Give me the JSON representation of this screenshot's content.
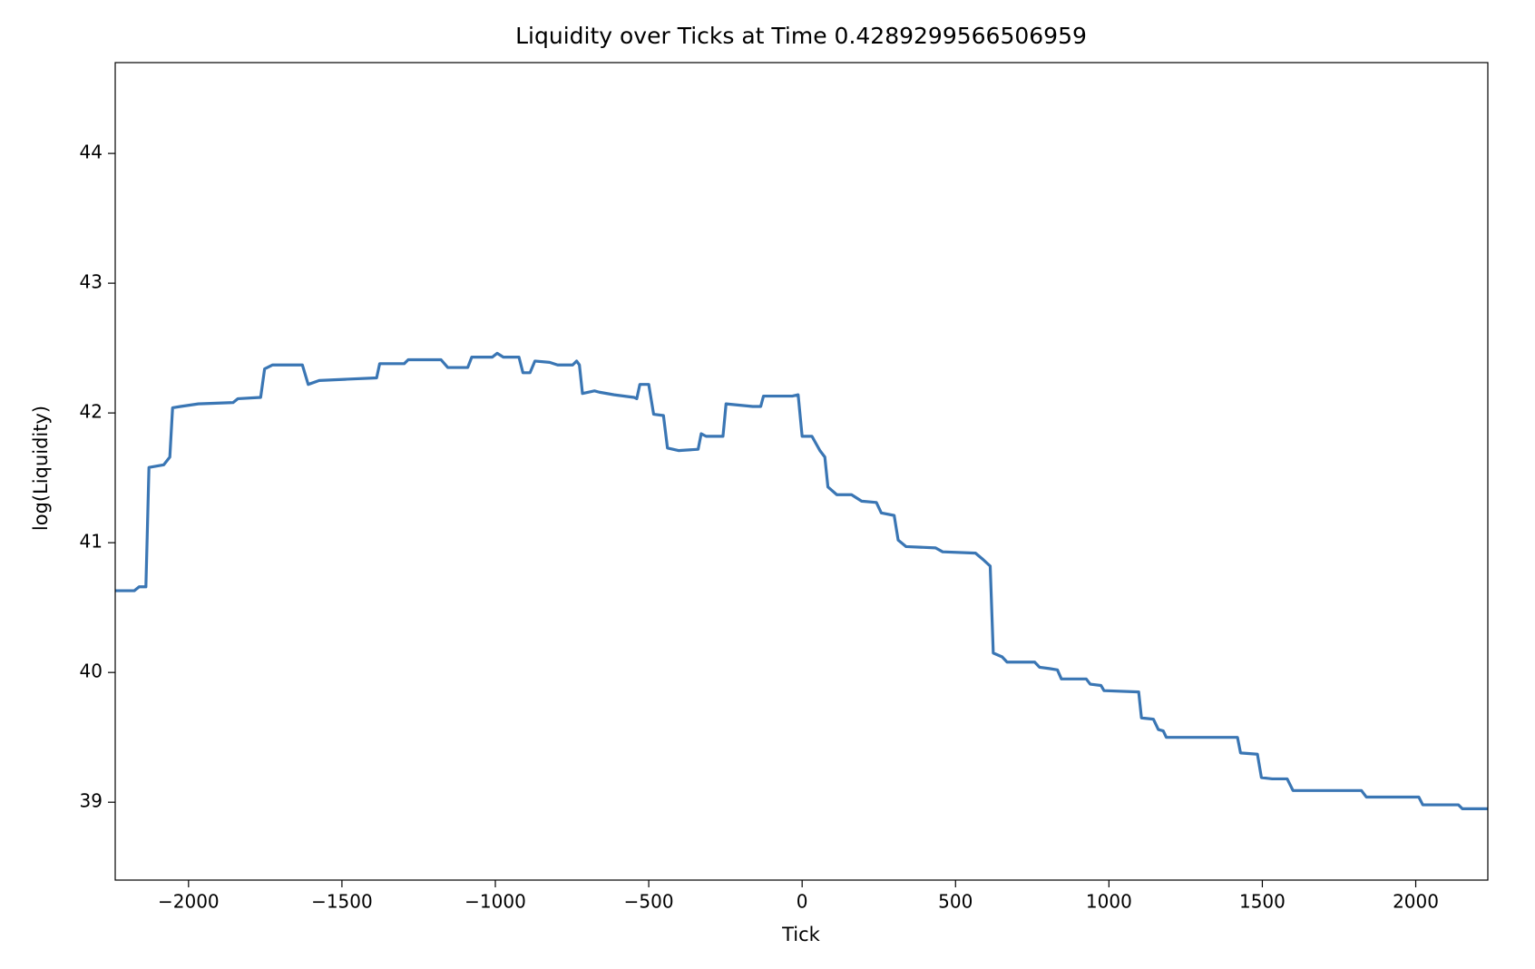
{
  "chart_data": {
    "type": "line",
    "title": "Liquidity over Ticks at Time 0.4289299566506959",
    "x_label": "Tick",
    "y_label": "log(Liquidity)",
    "x": [
      -2239,
      -2177,
      -2161,
      -2139,
      -2129,
      -2081,
      -2061,
      -2052,
      -2026,
      -1968,
      -1855,
      -1839,
      -1765,
      -1752,
      -1726,
      -1629,
      -1610,
      -1574,
      -1484,
      -1387,
      -1377,
      -1297,
      -1284,
      -1177,
      -1155,
      -1090,
      -1077,
      -1010,
      -994,
      -974,
      -923,
      -910,
      -887,
      -871,
      -823,
      -797,
      -748,
      -735,
      -726,
      -716,
      -677,
      -661,
      -613,
      -548,
      -539,
      -529,
      -500,
      -484,
      -452,
      -439,
      -403,
      -339,
      -329,
      -313,
      -258,
      -248,
      -161,
      -135,
      -126,
      -32,
      -13,
      0,
      32,
      58,
      74,
      84,
      113,
      161,
      194,
      242,
      258,
      300,
      313,
      339,
      435,
      458,
      565,
      590,
      613,
      623,
      652,
      668,
      758,
      774,
      806,
      832,
      845,
      926,
      939,
      974,
      984,
      1097,
      1106,
      1145,
      1161,
      1177,
      1187,
      1419,
      1429,
      1484,
      1497,
      1532,
      1581,
      1600,
      1823,
      1839,
      2010,
      2023,
      2139,
      2152,
      2235
    ],
    "series": [
      {
        "name": "Liquidity",
        "color": "#3a76b4",
        "values": [
          40.63,
          40.63,
          40.66,
          40.66,
          41.58,
          41.6,
          41.66,
          42.04,
          42.05,
          42.07,
          42.08,
          42.11,
          42.12,
          42.34,
          42.37,
          42.37,
          42.22,
          42.25,
          42.26,
          42.27,
          42.38,
          42.38,
          42.41,
          42.41,
          42.35,
          42.35,
          42.43,
          42.43,
          42.46,
          42.43,
          42.43,
          42.31,
          42.31,
          42.4,
          42.39,
          42.37,
          42.37,
          42.4,
          42.37,
          42.15,
          42.17,
          42.16,
          42.14,
          42.12,
          42.11,
          42.22,
          42.22,
          41.99,
          41.98,
          41.73,
          41.71,
          41.72,
          41.84,
          41.82,
          41.82,
          42.07,
          42.05,
          42.05,
          42.13,
          42.13,
          42.14,
          41.82,
          41.82,
          41.71,
          41.66,
          41.43,
          41.37,
          41.37,
          41.32,
          41.31,
          41.23,
          41.21,
          41.02,
          40.97,
          40.96,
          40.93,
          40.92,
          40.87,
          40.82,
          40.15,
          40.12,
          40.08,
          40.08,
          40.04,
          40.03,
          40.02,
          39.95,
          39.95,
          39.91,
          39.9,
          39.86,
          39.85,
          39.65,
          39.64,
          39.56,
          39.55,
          39.5,
          39.5,
          39.38,
          39.37,
          39.19,
          39.18,
          39.18,
          39.09,
          39.09,
          39.04,
          39.04,
          38.98,
          38.98,
          38.95,
          38.95
        ]
      }
    ],
    "xlim": [
      -2239,
      2235
    ],
    "ylim": [
      38.4,
      44.7
    ],
    "xticks": [
      {
        "value": -2000,
        "label": "−2000"
      },
      {
        "value": -1500,
        "label": "−1500"
      },
      {
        "value": -1000,
        "label": "−1000"
      },
      {
        "value": -500,
        "label": "−500"
      },
      0,
      500,
      1000,
      1500,
      2000
    ],
    "yticks": [
      39,
      40,
      41,
      42,
      43,
      44
    ],
    "grid": false
  }
}
